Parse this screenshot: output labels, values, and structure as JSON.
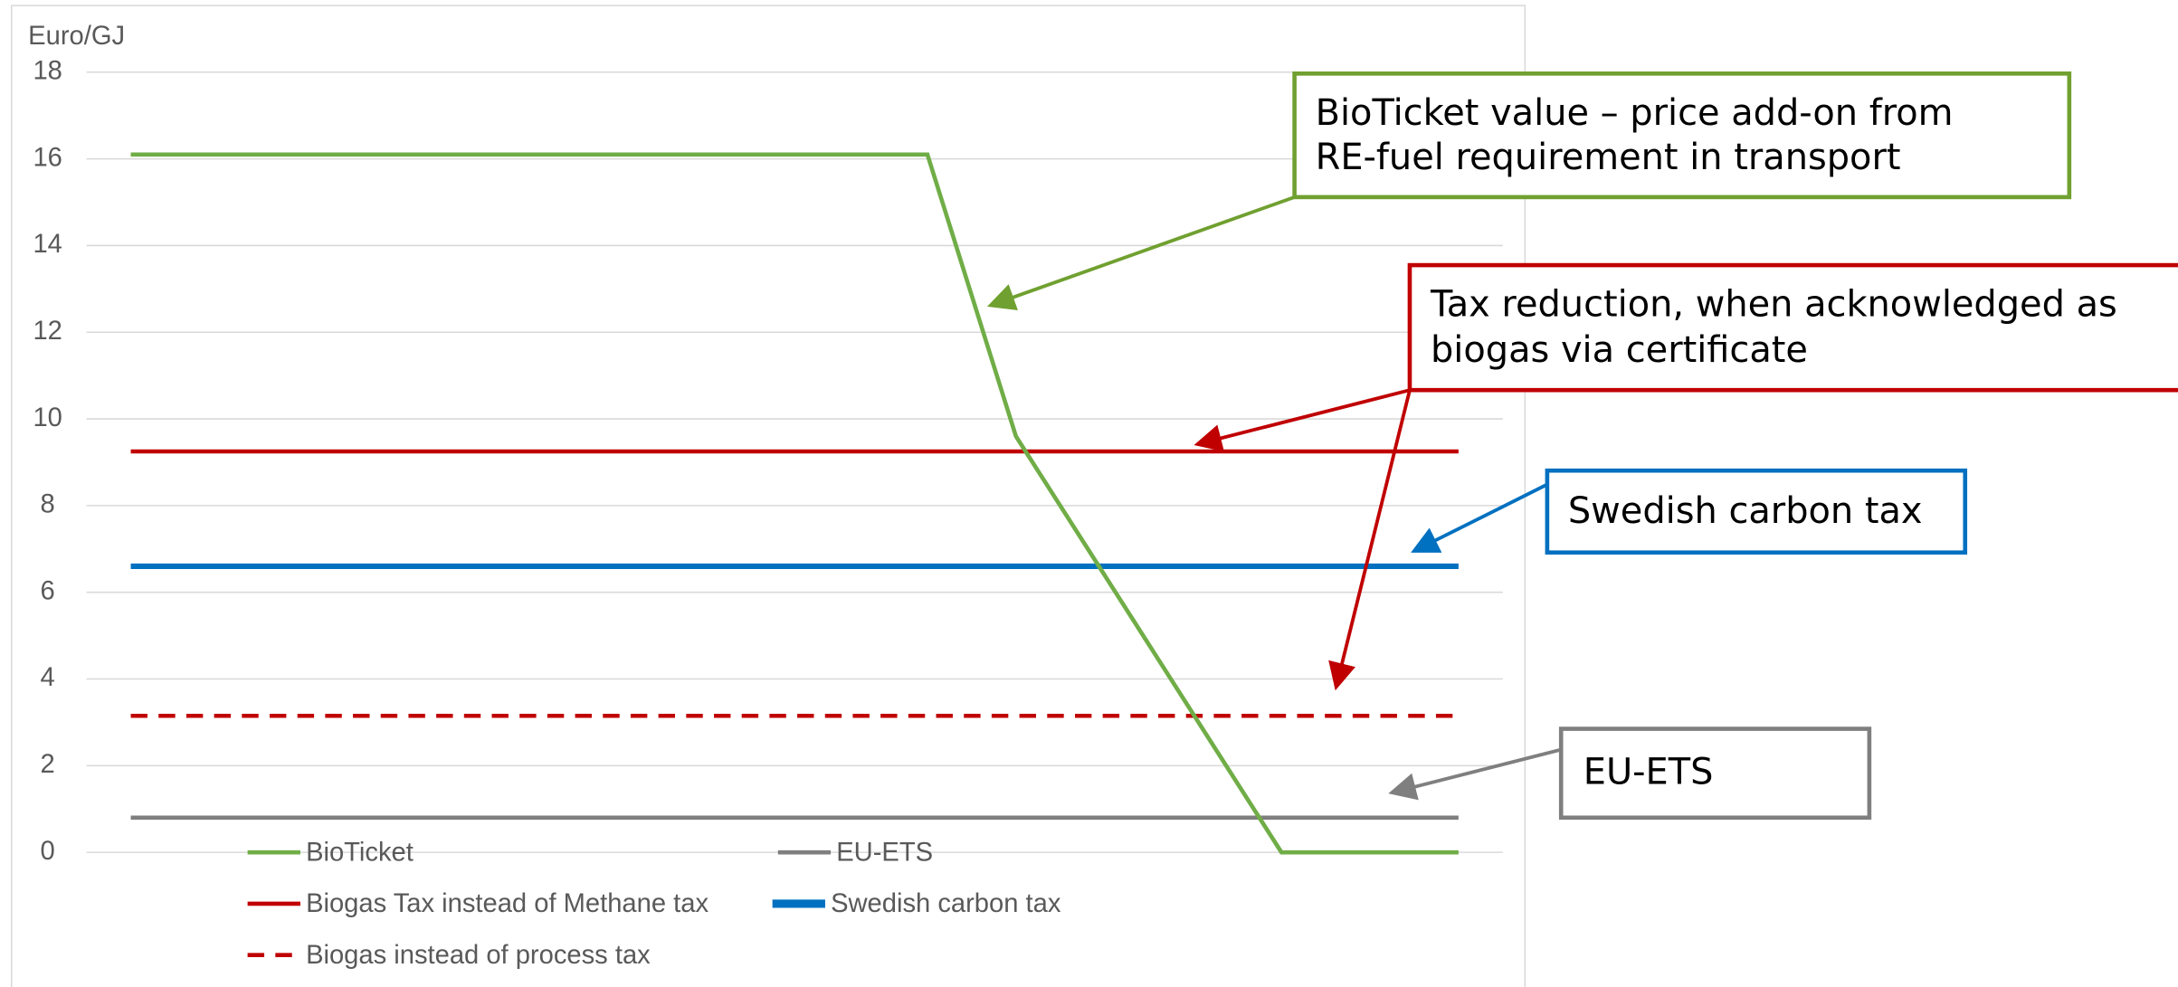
{
  "chart_data": {
    "type": "line",
    "y_label": "Euro/GJ",
    "categories": [
      null,
      null,
      null,
      null,
      null,
      null,
      null,
      null,
      null,
      null,
      null,
      null,
      null,
      null,
      null,
      null
    ],
    "series": [
      {
        "name": "BioTicket",
        "color": "#70ad47",
        "values": [
          16.1,
          16.1,
          16.1,
          16.1,
          16.1,
          16.1,
          16.1,
          16.1,
          16.1,
          16.1,
          9.6,
          6.4,
          3.2,
          0,
          0,
          0
        ]
      },
      {
        "name": "EU-ETS",
        "color": "#7f7f7f",
        "values": [
          0.8,
          0.8,
          0.8,
          0.8,
          0.8,
          0.8,
          0.8,
          0.8,
          0.8,
          0.8,
          0.8,
          0.8,
          0.8,
          0.8,
          0.8,
          0.8
        ]
      },
      {
        "name": "Biogas Tax instead of Methane tax",
        "color": "#c00000",
        "values": [
          9.25,
          9.25,
          9.25,
          9.25,
          9.25,
          9.25,
          9.25,
          9.25,
          9.25,
          9.25,
          9.25,
          9.25,
          9.25,
          9.25,
          9.25,
          9.25
        ]
      },
      {
        "name": "Swedish carbon tax",
        "color": "#0070c0",
        "values": [
          6.6,
          6.6,
          6.6,
          6.6,
          6.6,
          6.6,
          6.6,
          6.6,
          6.6,
          6.6,
          6.6,
          6.6,
          6.6,
          6.6,
          6.6,
          6.6
        ]
      },
      {
        "name": "Biogas instead of process tax",
        "color": "#c00000",
        "dashed": true,
        "values": [
          3.15,
          3.15,
          3.15,
          3.15,
          3.15,
          3.15,
          3.15,
          3.15,
          3.15,
          3.15,
          3.15,
          3.15,
          3.15,
          3.15,
          3.15,
          3.15
        ]
      }
    ],
    "ylim": [
      0,
      18
    ],
    "yticks": [
      0,
      2,
      4,
      6,
      8,
      10,
      12,
      14,
      16,
      18
    ],
    "grid": true,
    "annotations": [
      {
        "lines": [
          "BioTicket value – price add-on from",
          "RE-fuel requirement in transport"
        ],
        "color": "#70a030"
      },
      {
        "lines": [
          "Tax reduction, when acknowledged as",
          "biogas via certificate"
        ],
        "color": "#c00000"
      },
      {
        "lines": [
          "Swedish carbon tax"
        ],
        "color": "#0070c0"
      },
      {
        "lines": [
          "EU-ETS"
        ],
        "color": "#7f7f7f"
      }
    ]
  }
}
